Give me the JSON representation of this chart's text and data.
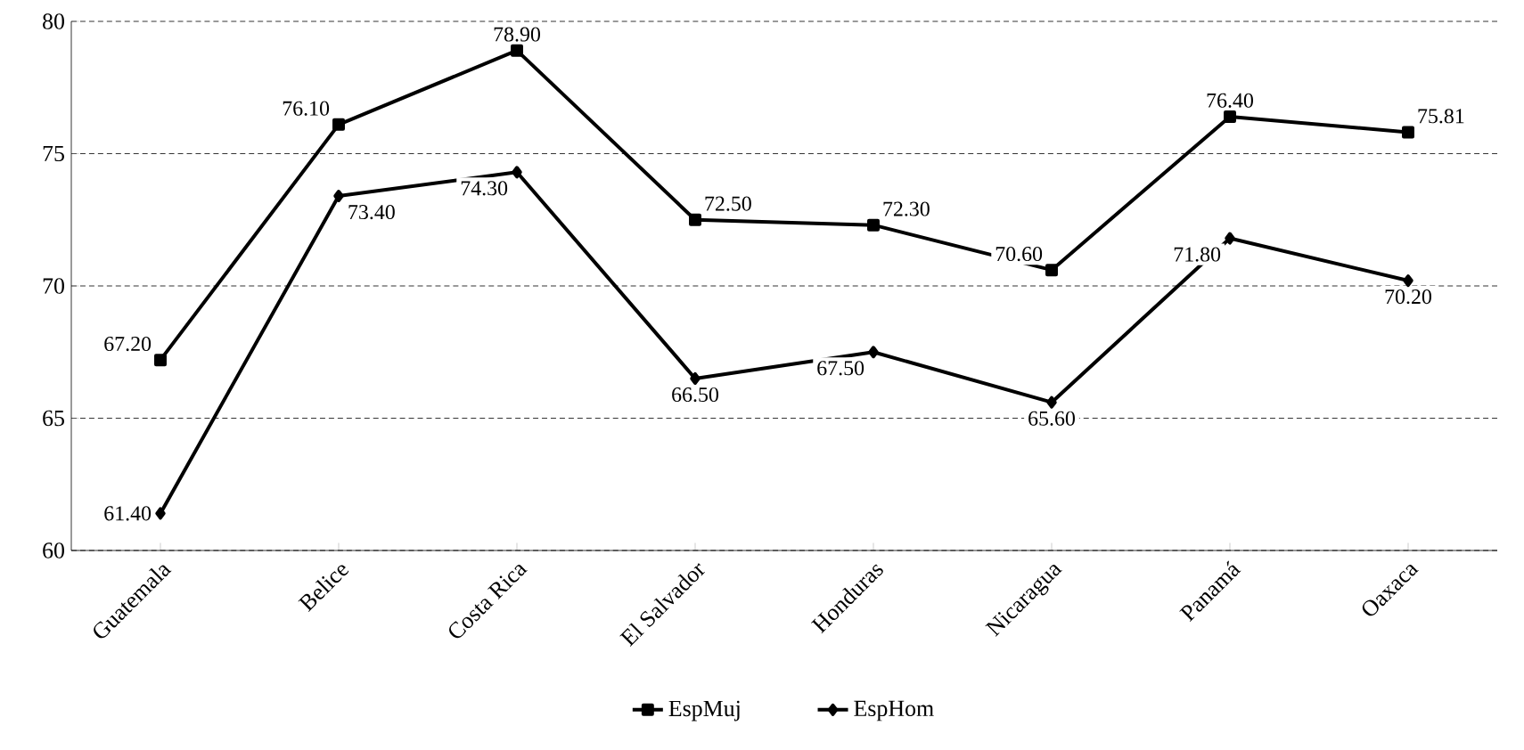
{
  "chart_data": {
    "type": "line",
    "categories": [
      "Guatemala",
      "Belice",
      "Costa Rica",
      "El Salvador",
      "Honduras",
      "Nicaragua",
      "Panamá",
      "Oaxaca"
    ],
    "series": [
      {
        "name": "EspMuj",
        "color": "#000000",
        "marker": "square",
        "values": [
          67.2,
          76.1,
          78.9,
          72.5,
          72.3,
          70.6,
          76.4,
          75.81
        ],
        "value_labels": [
          "67.20",
          "76.10",
          "78.90",
          "72.50",
          "72.30",
          "70.60",
          "76.40",
          "75.81"
        ]
      },
      {
        "name": "EspHom",
        "color": "#000000",
        "marker": "diamond",
        "values": [
          61.4,
          73.4,
          74.3,
          66.5,
          67.5,
          65.6,
          71.8,
          70.2
        ],
        "value_labels": [
          "61.40",
          "73.40",
          "74.30",
          "66.50",
          "67.50",
          "65.60",
          "71.80",
          "70.20"
        ]
      }
    ],
    "ylim": [
      60,
      80
    ],
    "yticks": [
      60,
      65,
      70,
      75,
      80
    ],
    "grid": "y",
    "legend": "bottom",
    "line_style": "solid"
  }
}
